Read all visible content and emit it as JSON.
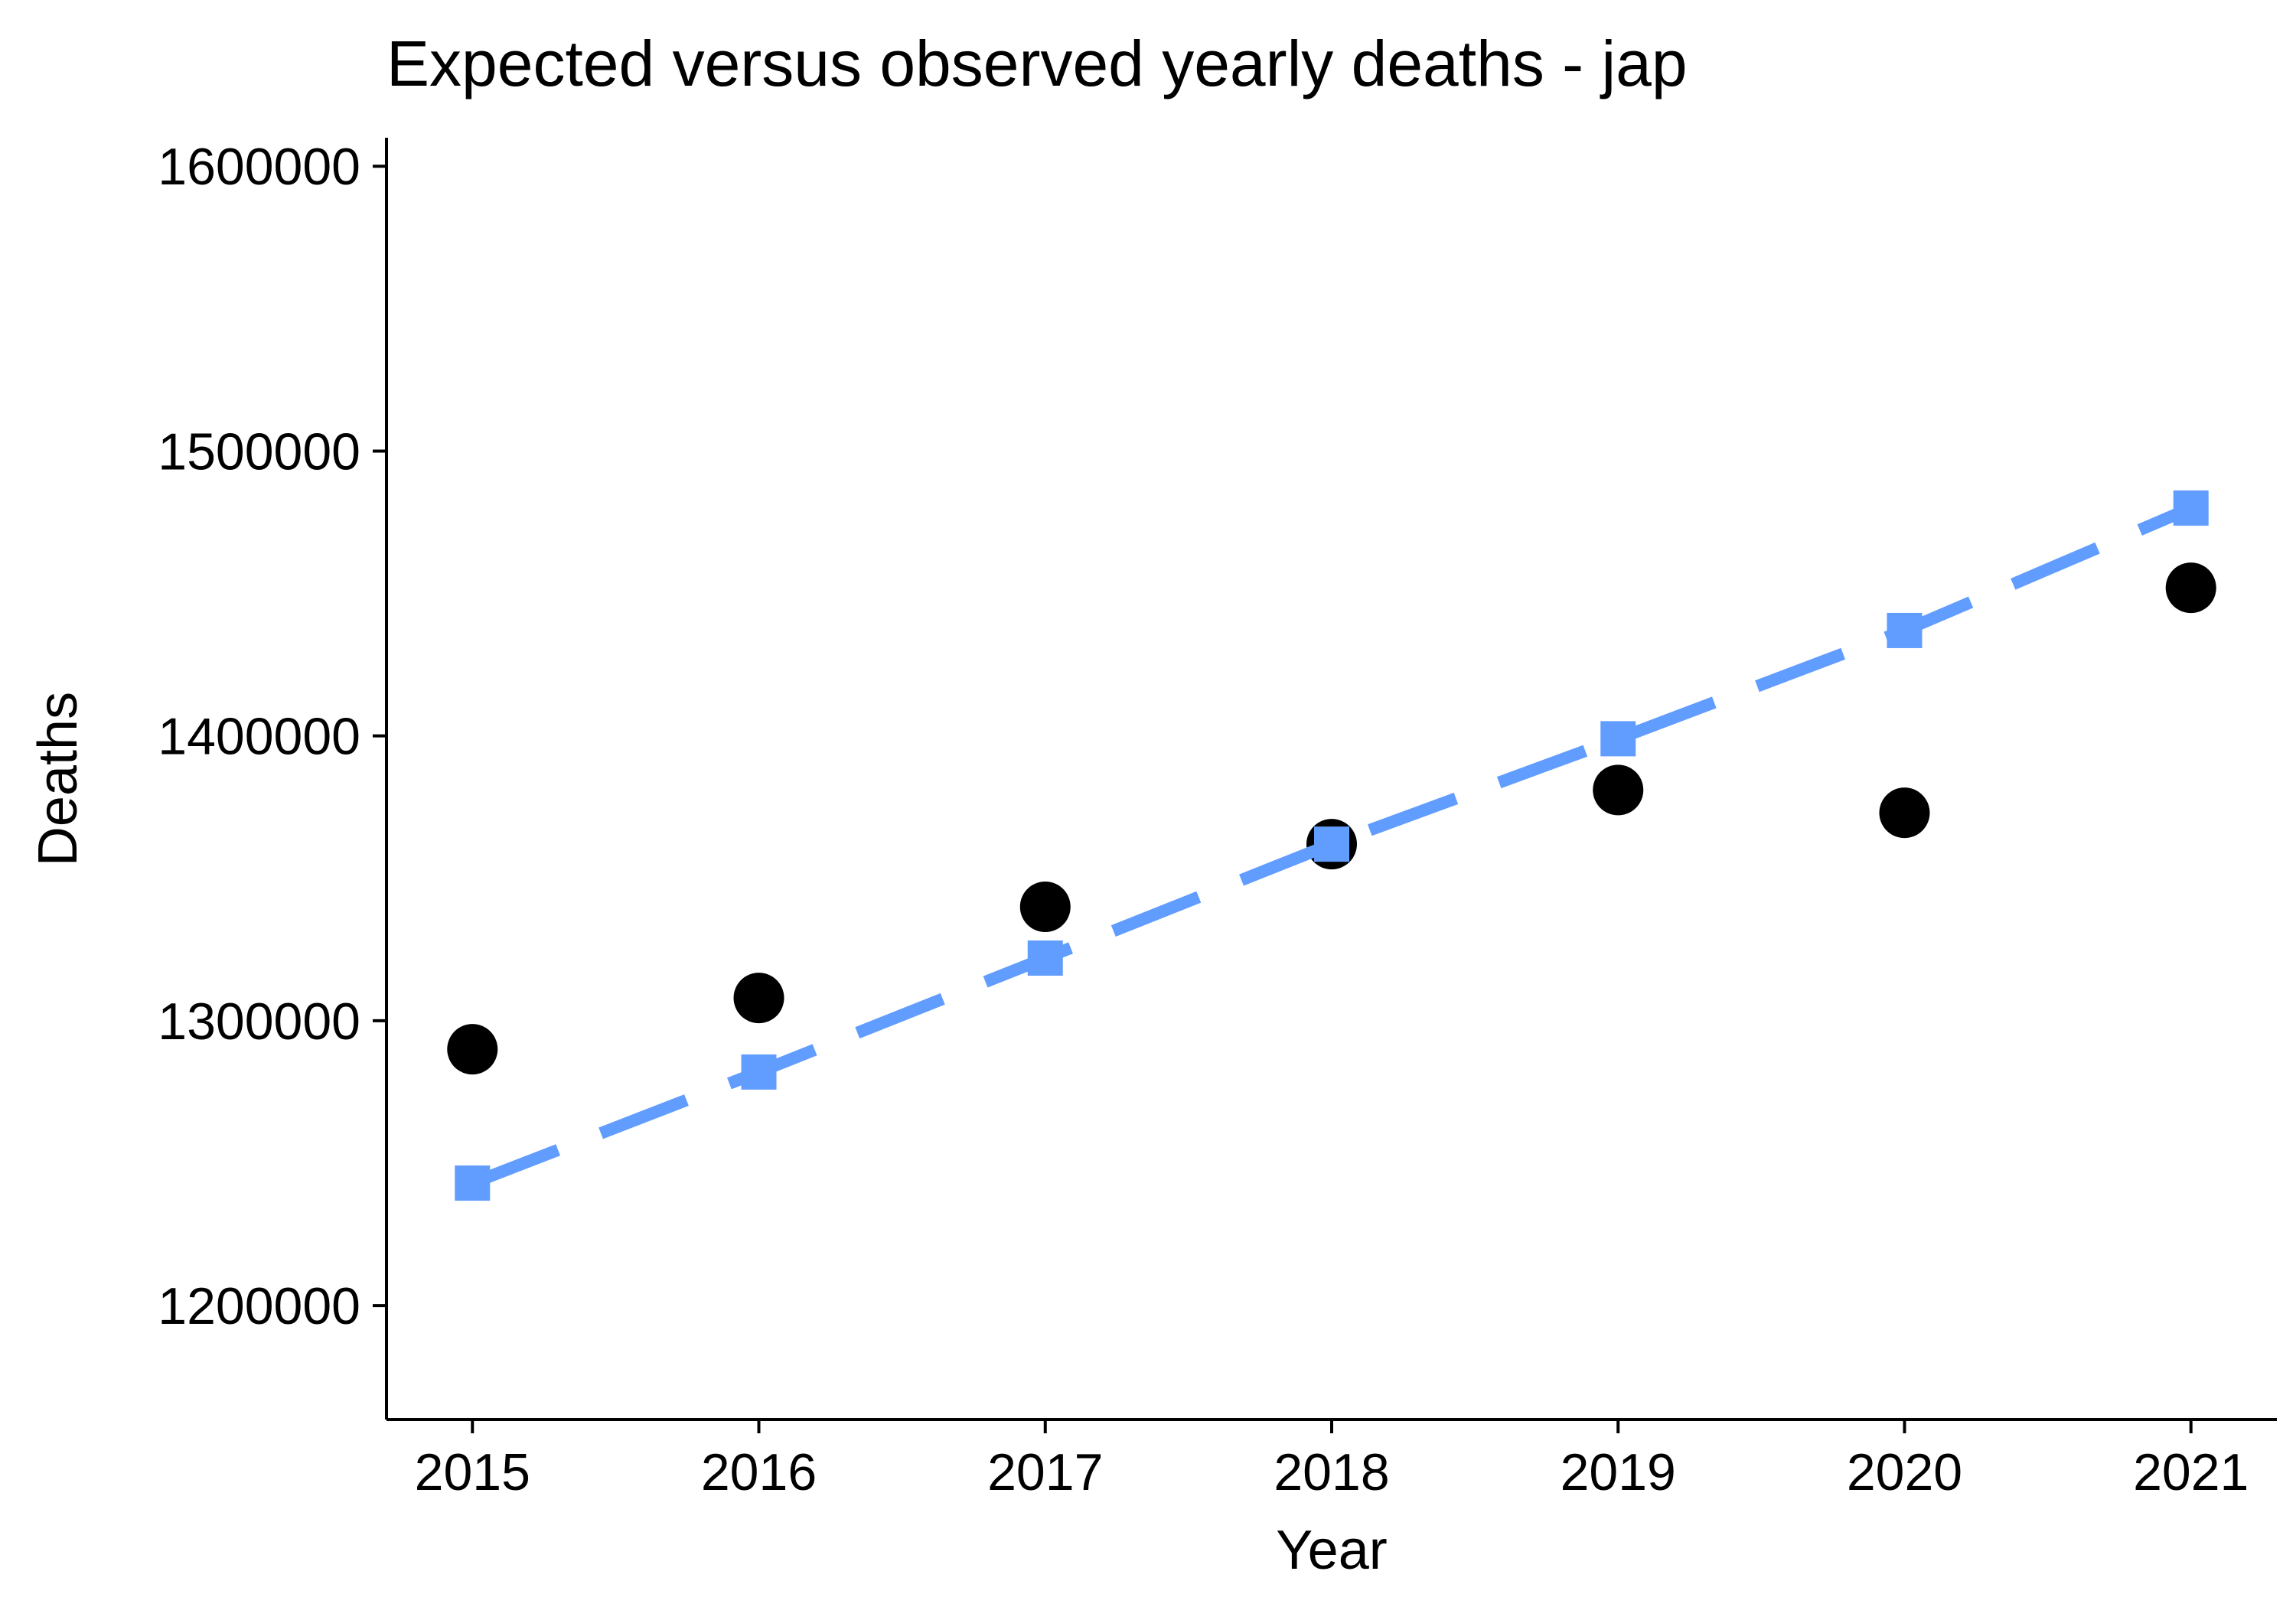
{
  "chart_data": {
    "type": "scatter",
    "title": "Expected versus observed yearly deaths - jap",
    "xlabel": "Year",
    "ylabel": "Deaths",
    "x": [
      2015,
      2016,
      2017,
      2018,
      2019,
      2020,
      2021
    ],
    "xlim": [
      2014.7,
      2021.3
    ],
    "ylim": [
      1160000,
      1610000
    ],
    "yticks": [
      1200000,
      1300000,
      1400000,
      1500000,
      1600000
    ],
    "grid": false,
    "legend": "none",
    "series": [
      {
        "marker": "circle",
        "color": "#000000",
        "values": [
          1290000,
          1308000,
          1340000,
          1362000,
          1381000,
          1373000,
          1452000
        ]
      },
      {
        "marker": "square",
        "line": "dashed",
        "color": "#619CFF",
        "values": [
          1243000,
          1282000,
          1322000,
          1362000,
          1399000,
          1437000,
          1480000
        ]
      }
    ]
  }
}
